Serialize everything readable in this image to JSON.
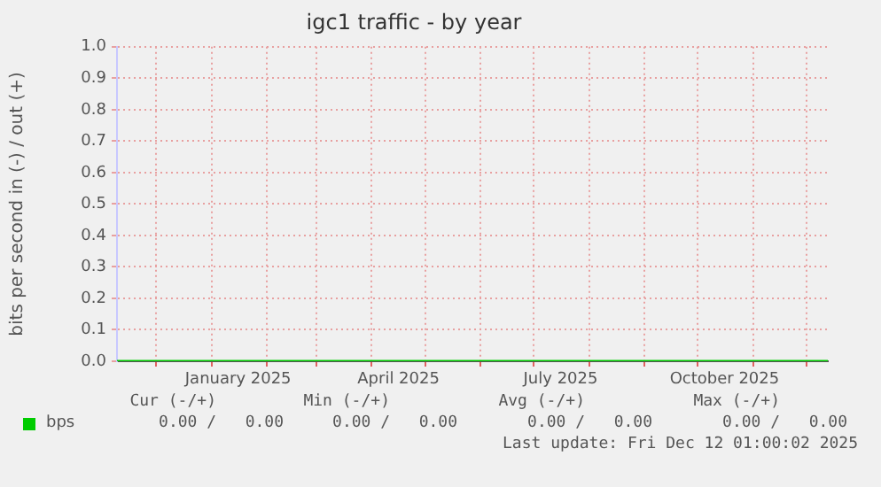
{
  "chart_data": {
    "type": "line",
    "title": "igc1 traffic - by year",
    "ylabel": "bits per second in (-) / out (+)",
    "x": [
      "2024-11-09",
      "2024-12-01",
      "2025-01-01",
      "2025-02-01",
      "2025-03-01",
      "2025-04-01",
      "2025-05-01",
      "2025-06-01",
      "2025-07-01",
      "2025-08-01",
      "2025-09-01",
      "2025-10-01",
      "2025-11-01",
      "2025-12-01",
      "2025-12-13"
    ],
    "series": [
      {
        "name": "bps",
        "color": "#00cc00",
        "values": [
          0,
          0,
          0,
          0,
          0,
          0,
          0,
          0,
          0,
          0,
          0,
          0,
          0,
          0,
          0
        ]
      }
    ],
    "xlim": [
      "2024-11-09",
      "2025-12-13"
    ],
    "xticks": [
      {
        "value": "2024-12-01",
        "label": null
      },
      {
        "value": "2025-01-01",
        "label": null
      },
      {
        "value": "2025-01-16",
        "label": "January 2025"
      },
      {
        "value": "2025-02-01",
        "label": null
      },
      {
        "value": "2025-03-01",
        "label": null
      },
      {
        "value": "2025-04-01",
        "label": null
      },
      {
        "value": "2025-04-16",
        "label": "April 2025"
      },
      {
        "value": "2025-05-01",
        "label": null
      },
      {
        "value": "2025-06-01",
        "label": null
      },
      {
        "value": "2025-07-01",
        "label": null
      },
      {
        "value": "2025-07-16",
        "label": "July 2025"
      },
      {
        "value": "2025-08-01",
        "label": null
      },
      {
        "value": "2025-09-01",
        "label": null
      },
      {
        "value": "2025-10-01",
        "label": null
      },
      {
        "value": "2025-10-16",
        "label": "October 2025"
      },
      {
        "value": "2025-11-01",
        "label": null
      },
      {
        "value": "2025-12-01",
        "label": null
      }
    ],
    "ylim": [
      0,
      1
    ],
    "yticks": [
      {
        "value": 0,
        "label": "0.0"
      },
      {
        "value": 0.1,
        "label": "0.1"
      },
      {
        "value": 0.2,
        "label": "0.2"
      },
      {
        "value": 0.3,
        "label": "0.3"
      },
      {
        "value": 0.4,
        "label": "0.4"
      },
      {
        "value": 0.5,
        "label": "0.5"
      },
      {
        "value": 0.6,
        "label": "0.6"
      },
      {
        "value": 0.7,
        "label": "0.7"
      },
      {
        "value": 0.8,
        "label": "0.8"
      },
      {
        "value": 0.9,
        "label": "0.9"
      },
      {
        "value": 1,
        "label": "1.0"
      }
    ],
    "grid": true,
    "legend": "bottom left",
    "marker": "none",
    "line_style": "solid",
    "annotations": [
      "Cur (-/+)",
      "Min (-/+)",
      "Avg (-/+)",
      "Max (-/+)",
      "0.00 /   0.00",
      "0.00 /   0.00",
      "0.00 /   0.00",
      "0.00 /   0.00",
      "Last update: Fri Dec 12 01:00:02 2025"
    ]
  }
}
